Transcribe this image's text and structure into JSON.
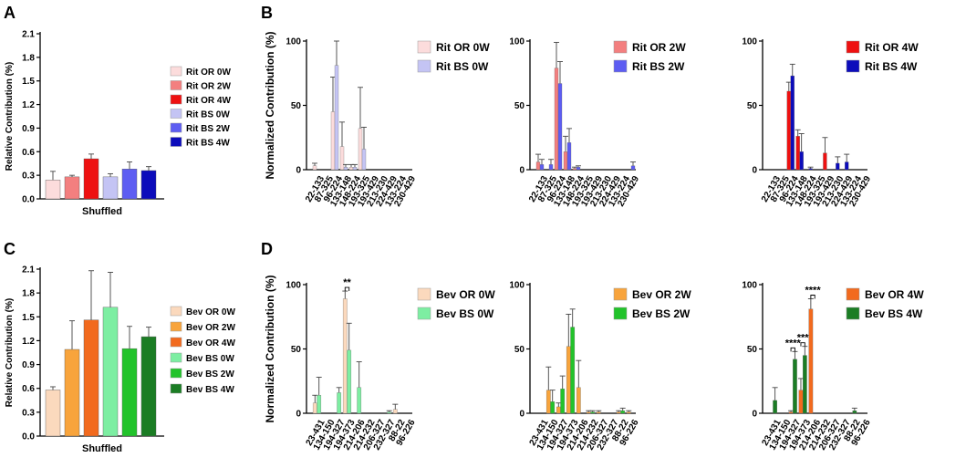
{
  "panel_labels": {
    "a": "A",
    "b": "B",
    "c": "C",
    "d": "D"
  },
  "colors": {
    "rit_or_0w": "#fcdcdc",
    "rit_or_2w": "#f37f7f",
    "rit_or_4w": "#ee1111",
    "rit_bs_0w": "#c4c4f4",
    "rit_bs_2w": "#5d5df2",
    "rit_bs_4w": "#0c0cbb",
    "bev_or_0w": "#fbd9bd",
    "bev_or_2w": "#f8a43c",
    "bev_or_4w": "#f26a1e",
    "bev_bs_0w": "#7deea2",
    "bev_bs_2w": "#22c32b",
    "bev_bs_4w": "#1b7d24"
  },
  "chart_data": [
    {
      "id": "A",
      "type": "bar",
      "title": "",
      "ylabel": "Relative Contribution (%)",
      "xlabel": "Shuffled",
      "ylim": [
        0,
        2.1
      ],
      "yticks": [
        "0.0",
        "0.3",
        "0.6",
        "0.9",
        "1.2",
        "1.5",
        "1.8",
        "2.1"
      ],
      "bars": [
        {
          "name": "Rit OR 0W",
          "value": 0.24,
          "error": 0.11,
          "color": "#fcdcdc"
        },
        {
          "name": "Rit OR 2W",
          "value": 0.28,
          "error": 0.02,
          "color": "#f37f7f"
        },
        {
          "name": "Rit OR 4W",
          "value": 0.51,
          "error": 0.06,
          "color": "#ee1111"
        },
        {
          "name": "Rit BS 0W",
          "value": 0.28,
          "error": 0.04,
          "color": "#c4c4f4"
        },
        {
          "name": "Rit BS 2W",
          "value": 0.38,
          "error": 0.09,
          "color": "#5d5df2"
        },
        {
          "name": "Rit BS 4W",
          "value": 0.36,
          "error": 0.05,
          "color": "#0c0cbb"
        }
      ]
    },
    {
      "id": "B1",
      "type": "bar",
      "ylabel": "Normalized Contribution (%)",
      "ylim": [
        0,
        100
      ],
      "yticks": [
        "0",
        "50",
        "100"
      ],
      "categories": [
        "22-133",
        "87-325",
        "96-224",
        "133-148",
        "148-224",
        "193-325",
        "193-429",
        "213-230",
        "224-429",
        "133-224",
        "230-429"
      ],
      "series": [
        {
          "name": "Rit OR 0W",
          "color": "#fcdcdc",
          "values": [
            3,
            0,
            45,
            18,
            2,
            32,
            0,
            0,
            0,
            0,
            0
          ],
          "errors": [
            2,
            0,
            27,
            19,
            2,
            32,
            0,
            0,
            0,
            0,
            0
          ]
        },
        {
          "name": "Rit BS 0W",
          "color": "#c4c4f4",
          "values": [
            0,
            0,
            81,
            2,
            2,
            16,
            0,
            0,
            0,
            0,
            0
          ],
          "errors": [
            0,
            0,
            19,
            2,
            2,
            17,
            0,
            0,
            0,
            0,
            0
          ]
        }
      ]
    },
    {
      "id": "B2",
      "type": "bar",
      "ylim": [
        0,
        100
      ],
      "yticks": [
        "0",
        "50",
        "100"
      ],
      "categories": [
        "22-133",
        "87-325",
        "96-224",
        "133-148",
        "148-224",
        "193-325",
        "193-429",
        "213-230",
        "224-429",
        "133-224",
        "230-429"
      ],
      "series": [
        {
          "name": "Rit OR 2W",
          "color": "#f37f7f",
          "values": [
            6,
            0,
            79,
            14,
            1,
            0,
            0,
            0,
            0,
            0,
            0
          ],
          "errors": [
            6,
            0,
            20,
            12,
            1,
            0,
            0,
            0,
            0,
            0,
            0
          ]
        },
        {
          "name": "Rit BS 2W",
          "color": "#5d5df2",
          "values": [
            4,
            4,
            67,
            21,
            2,
            0,
            0,
            0,
            0,
            0,
            3
          ],
          "errors": [
            4,
            4,
            17,
            11,
            1,
            0,
            0,
            0,
            0,
            0,
            3
          ]
        }
      ]
    },
    {
      "id": "B3",
      "type": "bar",
      "ylim": [
        0,
        100
      ],
      "yticks": [
        "0",
        "50",
        "100"
      ],
      "categories": [
        "22-133",
        "87-325",
        "96-224",
        "133-148",
        "148-224",
        "193-325",
        "193-429",
        "213-230",
        "224-429",
        "133-224",
        "230-429"
      ],
      "series": [
        {
          "name": "Rit OR 4W",
          "color": "#ee1111",
          "values": [
            0,
            0,
            61,
            26,
            0,
            0,
            13,
            0,
            0,
            0,
            0
          ],
          "errors": [
            0,
            0,
            7,
            5,
            0,
            0,
            12,
            0,
            0,
            0,
            0
          ]
        },
        {
          "name": "Rit BS 4W",
          "color": "#0c0cbb",
          "values": [
            0,
            0,
            73,
            14,
            1,
            0,
            0,
            5,
            6,
            0,
            0
          ],
          "errors": [
            0,
            0,
            9,
            14,
            1,
            0,
            0,
            5,
            6,
            0,
            0
          ]
        }
      ]
    },
    {
      "id": "C",
      "type": "bar",
      "ylabel": "Relative Contribution (%)",
      "xlabel": "Shuffled",
      "ylim": [
        0,
        2.1
      ],
      "yticks": [
        "0.0",
        "0.3",
        "0.6",
        "0.9",
        "1.2",
        "1.5",
        "1.8",
        "2.1"
      ],
      "bars": [
        {
          "name": "Bev OR 0W",
          "value": 0.58,
          "error": 0.04,
          "color": "#fbd9bd"
        },
        {
          "name": "Bev OR 2W",
          "value": 1.09,
          "error": 0.36,
          "color": "#f8a43c"
        },
        {
          "name": "Bev OR 4W",
          "value": 1.46,
          "error": 0.62,
          "color": "#f26a1e"
        },
        {
          "name": "Bev BS 0W",
          "value": 1.62,
          "error": 0.44,
          "color": "#7deea2"
        },
        {
          "name": "Bev BS 2W",
          "value": 1.1,
          "error": 0.28,
          "color": "#22c32b"
        },
        {
          "name": "Bev BS 4W",
          "value": 1.25,
          "error": 0.12,
          "color": "#1b7d24"
        }
      ]
    },
    {
      "id": "D1",
      "type": "bar",
      "ylabel": "Normalized Contribution (%)",
      "ylim": [
        0,
        100
      ],
      "yticks": [
        "0",
        "50",
        "100"
      ],
      "categories": [
        "23-431",
        "134-150",
        "194-327",
        "194-373",
        "214-206",
        "214-232",
        "206-327",
        "232-327",
        "88-22",
        "96-226"
      ],
      "series": [
        {
          "name": "Bev OR 0W",
          "color": "#fbd9bd",
          "values": [
            8,
            0,
            0,
            89,
            0,
            0,
            0,
            0,
            3,
            0
          ],
          "errors": [
            6,
            0,
            0,
            6,
            0,
            0,
            0,
            0,
            4,
            0
          ]
        },
        {
          "name": "Bev BS 0W",
          "color": "#7deea2",
          "values": [
            14,
            0,
            16,
            49,
            20,
            0,
            0,
            1,
            0,
            0
          ],
          "errors": [
            14,
            0,
            4,
            21,
            20,
            0,
            0,
            1,
            0,
            0
          ]
        }
      ],
      "significance": [
        {
          "category": "194-373",
          "label": "**"
        }
      ]
    },
    {
      "id": "D2",
      "type": "bar",
      "ylim": [
        0,
        100
      ],
      "yticks": [
        "0",
        "50",
        "100"
      ],
      "categories": [
        "23-431",
        "134-150",
        "194-327",
        "194-373",
        "214-206",
        "214-232",
        "206-327",
        "232-327",
        "88-22",
        "96-226"
      ],
      "series": [
        {
          "name": "Bev OR 2W",
          "color": "#f8a43c",
          "values": [
            0,
            18,
            5,
            52,
            20,
            1,
            1,
            0,
            1,
            1
          ],
          "errors": [
            0,
            18,
            3,
            25,
            21,
            1,
            1,
            0,
            1,
            1
          ]
        },
        {
          "name": "Bev BS 2W",
          "color": "#22c32b",
          "values": [
            0,
            9,
            19,
            67,
            0,
            1,
            0,
            0,
            2,
            0
          ],
          "errors": [
            0,
            9,
            10,
            14,
            0,
            1,
            0,
            0,
            2,
            0
          ]
        }
      ]
    },
    {
      "id": "D3",
      "type": "bar",
      "ylim": [
        0,
        100
      ],
      "yticks": [
        "0",
        "50",
        "100"
      ],
      "categories": [
        "23-431",
        "134-150",
        "194-327",
        "194-373",
        "214-206",
        "214-232",
        "206-327",
        "232-327",
        "88-22",
        "96-226"
      ],
      "series": [
        {
          "name": "Bev OR 4W",
          "color": "#f26a1e",
          "values": [
            0,
            0,
            1,
            18,
            81,
            0,
            0,
            0,
            0,
            0
          ],
          "errors": [
            0,
            0,
            1,
            9,
            8,
            0,
            0,
            0,
            0,
            0
          ]
        },
        {
          "name": "Bev BS 4W",
          "color": "#1b7d24",
          "values": [
            10,
            0,
            42,
            45,
            0,
            0,
            0,
            0,
            2,
            0
          ],
          "errors": [
            10,
            0,
            6,
            7,
            0,
            0,
            0,
            0,
            2,
            0
          ]
        }
      ],
      "significance": [
        {
          "category": "194-327",
          "label": "****"
        },
        {
          "category": "194-373",
          "label": "***"
        },
        {
          "category": "214-206",
          "label": "****"
        }
      ]
    }
  ]
}
